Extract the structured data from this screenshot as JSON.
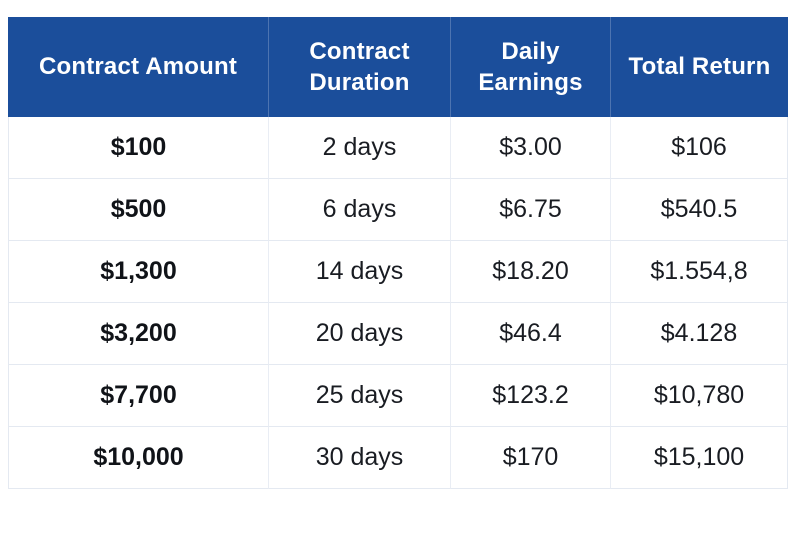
{
  "chart_data": {
    "type": "table",
    "columns": [
      "Contract Amount",
      "Contract Duration",
      "Daily Earnings",
      "Total Return"
    ],
    "rows": [
      [
        "$100",
        "2 days",
        "$3.00",
        "$106"
      ],
      [
        "$500",
        "6 days",
        "$6.75",
        "$540.5"
      ],
      [
        "$1,300",
        "14 days",
        "$18.20",
        "$1.554,8"
      ],
      [
        "$3,200",
        "20 days",
        "$46.4",
        "$4.128"
      ],
      [
        "$7,700",
        "25 days",
        "$123.2",
        "$10,780"
      ],
      [
        "$10,000",
        "30 days",
        "$170",
        "$15,100"
      ]
    ],
    "layout": {
      "header_background": "#1b4e9b",
      "header_text_color": "#ffffff",
      "grid_line_color": "#e4e9f1",
      "body_text_color": "#191c22",
      "first_column_bold": true
    }
  }
}
